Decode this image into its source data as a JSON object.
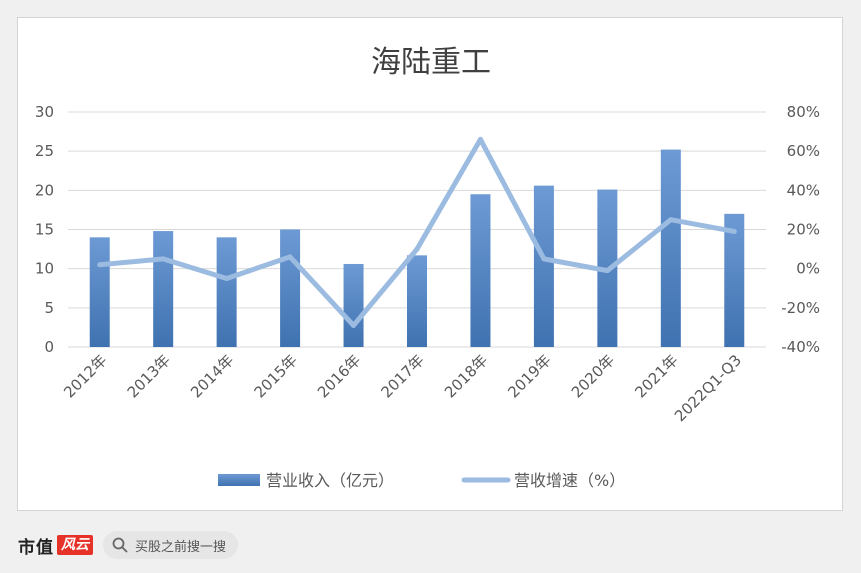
{
  "chart_data": {
    "type": "bar+line",
    "title": "海陆重工",
    "categories": [
      "2012年",
      "2013年",
      "2014年",
      "2015年",
      "2016年",
      "2017年",
      "2018年",
      "2019年",
      "2020年",
      "2021年",
      "2022Q1-Q3"
    ],
    "series": [
      {
        "name": "营业收入（亿元）",
        "type": "bar",
        "axis": "left",
        "values": [
          14.0,
          14.8,
          14.0,
          15.0,
          10.6,
          11.7,
          19.5,
          20.6,
          20.1,
          25.2,
          17.0
        ]
      },
      {
        "name": "营收增速（%）",
        "type": "line",
        "axis": "right",
        "values": [
          2,
          5,
          -5,
          6,
          -29,
          10,
          66,
          5,
          -1,
          25,
          19
        ]
      }
    ],
    "y_left": {
      "min": 0,
      "max": 30,
      "ticks": [
        "0",
        "5",
        "10",
        "15",
        "20",
        "25",
        "30"
      ]
    },
    "y_right": {
      "min": -40,
      "max": 80,
      "ticks": [
        "-40%",
        "-20%",
        "0%",
        "20%",
        "40%",
        "60%",
        "80%"
      ]
    },
    "grid": true,
    "legend": "bottom",
    "colors": {
      "bar": "#4a7ebb",
      "bar_light": "#6d9ad4",
      "line": "#9bbbe0"
    }
  },
  "footer": {
    "brand": "市值",
    "brand_logo": "风云",
    "search_placeholder": "买股之前搜一搜"
  }
}
